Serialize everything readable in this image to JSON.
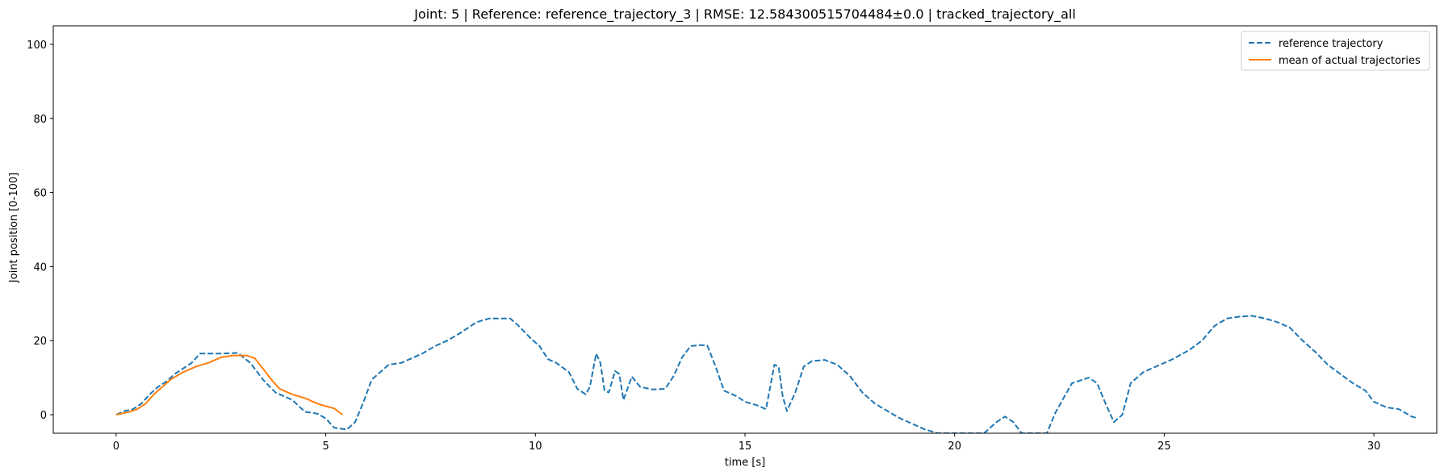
{
  "chart_data": {
    "type": "line",
    "title": "Joint: 5 | Reference: reference_trajectory_3 | RMSE: 12.584300515704484±0.0 | tracked_trajectory_all",
    "xlabel": "time [s]",
    "ylabel": "Joint position [0-100]",
    "xlim": [
      -1.5,
      31.5
    ],
    "ylim": [
      -5,
      105
    ],
    "xticks": [
      0,
      5,
      10,
      15,
      20,
      25,
      30
    ],
    "yticks": [
      0,
      20,
      40,
      60,
      80,
      100
    ],
    "grid": false,
    "legend_position": "top-right",
    "series": [
      {
        "name": "reference trajectory",
        "color": "#1f77b4",
        "style": "dashed",
        "points": [
          [
            0.0,
            0.0
          ],
          [
            0.2,
            1.0
          ],
          [
            0.4,
            1.5
          ],
          [
            0.6,
            3.0
          ],
          [
            0.8,
            5.5
          ],
          [
            1.0,
            7.5
          ],
          [
            1.2,
            9.0
          ],
          [
            1.4,
            11.0
          ],
          [
            1.6,
            12.5
          ],
          [
            1.8,
            14.0
          ],
          [
            2.0,
            16.5
          ],
          [
            2.5,
            16.5
          ],
          [
            2.9,
            16.7
          ],
          [
            3.2,
            14.0
          ],
          [
            3.5,
            9.5
          ],
          [
            3.8,
            6.0
          ],
          [
            4.2,
            4.0
          ],
          [
            4.5,
            0.8
          ],
          [
            4.8,
            0.3
          ],
          [
            5.0,
            -1.0
          ],
          [
            5.2,
            -3.5
          ],
          [
            5.5,
            -4.0
          ],
          [
            5.7,
            -2.0
          ],
          [
            5.9,
            3.5
          ],
          [
            6.1,
            9.5
          ],
          [
            6.3,
            11.5
          ],
          [
            6.5,
            13.5
          ],
          [
            6.8,
            14.0
          ],
          [
            7.0,
            15.0
          ],
          [
            7.3,
            16.5
          ],
          [
            7.6,
            18.5
          ],
          [
            7.9,
            20.0
          ],
          [
            8.2,
            22.0
          ],
          [
            8.6,
            25.0
          ],
          [
            8.9,
            26.0
          ],
          [
            9.4,
            26.0
          ],
          [
            9.6,
            24.0
          ],
          [
            9.9,
            20.5
          ],
          [
            10.1,
            18.5
          ],
          [
            10.3,
            15.0
          ],
          [
            10.5,
            14.0
          ],
          [
            10.8,
            11.5
          ],
          [
            11.0,
            7.0
          ],
          [
            11.2,
            5.5
          ],
          [
            11.3,
            7.5
          ],
          [
            11.45,
            16.5
          ],
          [
            11.55,
            14.0
          ],
          [
            11.65,
            6.5
          ],
          [
            11.75,
            6.0
          ],
          [
            11.9,
            11.8
          ],
          [
            12.0,
            11.0
          ],
          [
            12.1,
            4.0
          ],
          [
            12.3,
            10.3
          ],
          [
            12.5,
            7.5
          ],
          [
            12.8,
            6.8
          ],
          [
            13.1,
            7.0
          ],
          [
            13.3,
            10.5
          ],
          [
            13.5,
            15.5
          ],
          [
            13.7,
            18.5
          ],
          [
            13.9,
            18.8
          ],
          [
            14.1,
            18.7
          ],
          [
            14.3,
            13.0
          ],
          [
            14.5,
            6.5
          ],
          [
            14.8,
            5.0
          ],
          [
            15.0,
            3.5
          ],
          [
            15.3,
            2.5
          ],
          [
            15.5,
            1.5
          ],
          [
            15.7,
            13.5
          ],
          [
            15.8,
            13.0
          ],
          [
            15.9,
            5.0
          ],
          [
            16.0,
            1.0
          ],
          [
            16.2,
            6.0
          ],
          [
            16.4,
            13.0
          ],
          [
            16.6,
            14.5
          ],
          [
            16.9,
            14.8
          ],
          [
            17.2,
            13.5
          ],
          [
            17.5,
            10.5
          ],
          [
            17.8,
            6.0
          ],
          [
            18.1,
            3.0
          ],
          [
            18.4,
            1.0
          ],
          [
            18.7,
            -1.0
          ],
          [
            19.0,
            -2.5
          ],
          [
            19.3,
            -4.0
          ],
          [
            19.6,
            -5.0
          ],
          [
            20.7,
            -5.0
          ],
          [
            21.0,
            -2.0
          ],
          [
            21.2,
            -0.5
          ],
          [
            21.4,
            -2.0
          ],
          [
            21.6,
            -5.0
          ],
          [
            22.2,
            -5.0
          ],
          [
            22.4,
            0.5
          ],
          [
            22.6,
            4.5
          ],
          [
            22.8,
            8.5
          ],
          [
            23.2,
            10.0
          ],
          [
            23.4,
            8.5
          ],
          [
            23.6,
            3.0
          ],
          [
            23.8,
            -2.0
          ],
          [
            24.0,
            0.0
          ],
          [
            24.2,
            8.5
          ],
          [
            24.5,
            11.5
          ],
          [
            24.8,
            13.0
          ],
          [
            25.2,
            15.0
          ],
          [
            25.6,
            17.5
          ],
          [
            25.9,
            20.0
          ],
          [
            26.2,
            24.0
          ],
          [
            26.5,
            26.0
          ],
          [
            26.8,
            26.5
          ],
          [
            27.1,
            26.7
          ],
          [
            27.4,
            26.0
          ],
          [
            27.7,
            25.0
          ],
          [
            28.0,
            23.5
          ],
          [
            28.3,
            20.0
          ],
          [
            28.6,
            17.0
          ],
          [
            28.9,
            13.5
          ],
          [
            29.2,
            11.0
          ],
          [
            29.5,
            8.5
          ],
          [
            29.8,
            6.5
          ],
          [
            30.0,
            3.5
          ],
          [
            30.3,
            2.0
          ],
          [
            30.6,
            1.5
          ],
          [
            30.9,
            -0.5
          ],
          [
            31.0,
            -0.8
          ]
        ]
      },
      {
        "name": "mean of actual trajectories",
        "color": "#ff7f0e",
        "style": "solid",
        "points": [
          [
            0.0,
            0.0
          ],
          [
            0.3,
            0.7
          ],
          [
            0.5,
            1.5
          ],
          [
            0.7,
            3.0
          ],
          [
            0.9,
            5.5
          ],
          [
            1.1,
            7.5
          ],
          [
            1.3,
            9.5
          ],
          [
            1.6,
            11.5
          ],
          [
            1.9,
            13.0
          ],
          [
            2.2,
            14.0
          ],
          [
            2.5,
            15.5
          ],
          [
            2.8,
            16.0
          ],
          [
            3.1,
            16.0
          ],
          [
            3.3,
            15.3
          ],
          [
            3.5,
            12.5
          ],
          [
            3.7,
            9.5
          ],
          [
            3.9,
            7.0
          ],
          [
            4.2,
            5.5
          ],
          [
            4.5,
            4.5
          ],
          [
            4.8,
            3.0
          ],
          [
            5.0,
            2.3
          ],
          [
            5.2,
            1.7
          ],
          [
            5.4,
            0.0
          ]
        ]
      }
    ]
  }
}
